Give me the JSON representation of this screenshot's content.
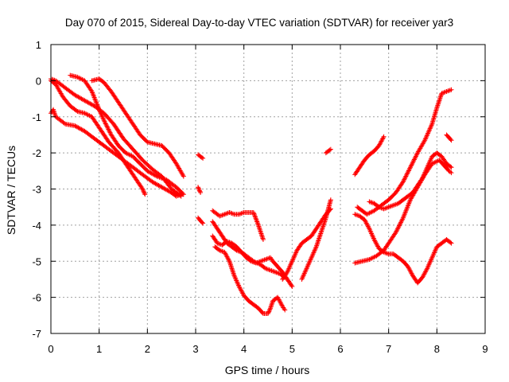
{
  "chart_data": {
    "type": "scatter",
    "title": "Day 070 of 2015, Sidereal Day-to-day VTEC variation (SDTVAR) for receiver yar3",
    "xlabel": "GPS time / hours",
    "ylabel": "SDTVAR / TECUs",
    "xlim": [
      0,
      9
    ],
    "ylim": [
      -7,
      1
    ],
    "xticks": [
      "0",
      "1",
      "2",
      "3",
      "4",
      "5",
      "6",
      "7",
      "8",
      "9"
    ],
    "yticks": [
      "1",
      "0",
      "-1",
      "-2",
      "-3",
      "-4",
      "-5",
      "-6",
      "-7"
    ],
    "grid": true,
    "marker": "+",
    "color": "#ff0000",
    "series": [
      {
        "x": [
          0.0,
          0.1,
          0.25,
          0.4,
          0.55,
          0.7,
          0.85,
          1.0,
          1.2,
          1.4,
          1.6,
          1.75,
          1.9,
          1.95
        ],
        "y": [
          0.0,
          -0.1,
          -0.45,
          -0.7,
          -0.85,
          -0.9,
          -1.0,
          -1.3,
          -1.7,
          -2.0,
          -2.4,
          -2.7,
          -3.0,
          -3.15
        ]
      },
      {
        "x": [
          0.0,
          0.05,
          0.1,
          0.3,
          0.5,
          0.7,
          0.9,
          1.1,
          1.3,
          1.5,
          1.7,
          1.9,
          2.1,
          2.3,
          2.5,
          2.6,
          2.7
        ],
        "y": [
          -0.9,
          -0.8,
          -1.0,
          -1.2,
          -1.25,
          -1.4,
          -1.6,
          -1.8,
          -2.0,
          -2.2,
          -2.4,
          -2.6,
          -2.8,
          -2.95,
          -3.1,
          -3.2,
          -3.15
        ]
      },
      {
        "x": [
          0.0,
          0.1,
          0.3,
          0.5,
          0.7,
          0.9,
          1.1,
          1.3,
          1.5,
          1.7,
          1.9,
          2.1,
          2.3,
          2.5,
          2.7
        ],
        "y": [
          0.05,
          0.0,
          -0.2,
          -0.4,
          -0.55,
          -0.7,
          -0.9,
          -1.2,
          -1.6,
          -1.9,
          -2.2,
          -2.45,
          -2.65,
          -3.0,
          -3.2
        ]
      },
      {
        "x": [
          0.4,
          0.55,
          0.7,
          0.85,
          1.0,
          1.1,
          1.25,
          1.4,
          1.55,
          1.7,
          1.85,
          2.0,
          2.2,
          2.4,
          2.6,
          2.75
        ],
        "y": [
          0.15,
          0.1,
          0.0,
          -0.3,
          -0.8,
          -1.1,
          -1.5,
          -1.8,
          -2.0,
          -2.1,
          -2.3,
          -2.5,
          -2.65,
          -2.75,
          -2.95,
          -3.15
        ]
      },
      {
        "x": [
          0.85,
          1.0,
          1.1,
          1.25,
          1.4,
          1.55,
          1.7,
          1.85,
          2.0,
          2.15,
          2.3,
          2.45,
          2.6,
          2.75
        ],
        "y": [
          0.0,
          0.05,
          -0.05,
          -0.3,
          -0.6,
          -0.9,
          -1.2,
          -1.5,
          -1.7,
          -1.75,
          -1.8,
          -2.0,
          -2.3,
          -2.65
        ]
      },
      {
        "x": [
          3.05,
          3.15
        ],
        "y": [
          -2.05,
          -2.15
        ]
      },
      {
        "x": [
          3.05,
          3.1
        ],
        "y": [
          -2.95,
          -3.1
        ]
      },
      {
        "x": [
          3.05,
          3.15
        ],
        "y": [
          -3.8,
          -3.95
        ]
      },
      {
        "x": [
          3.35,
          3.5,
          3.6,
          3.7,
          3.8,
          3.9,
          4.0,
          4.1,
          4.2,
          4.3,
          4.4
        ],
        "y": [
          -3.6,
          -3.75,
          -3.7,
          -3.65,
          -3.7,
          -3.7,
          -3.65,
          -3.65,
          -3.65,
          -4.0,
          -4.4
        ]
      },
      {
        "x": [
          3.35,
          3.45,
          3.55,
          3.65,
          3.75,
          3.85,
          3.95,
          4.05,
          4.2,
          4.35,
          4.45,
          4.55,
          4.65,
          4.75,
          4.85
        ],
        "y": [
          -3.9,
          -4.1,
          -4.3,
          -4.5,
          -4.6,
          -4.7,
          -4.75,
          -4.85,
          -5.0,
          -5.1,
          -5.2,
          -5.25,
          -5.3,
          -5.35,
          -5.45
        ]
      },
      {
        "x": [
          3.35,
          3.45,
          3.55,
          3.65,
          3.75,
          3.85,
          3.95,
          4.05,
          4.15,
          4.25,
          4.35,
          4.45,
          4.55,
          4.6,
          4.7,
          4.8,
          4.9,
          5.0
        ],
        "y": [
          -4.3,
          -4.5,
          -4.55,
          -4.45,
          -4.5,
          -4.6,
          -4.75,
          -4.9,
          -5.0,
          -5.05,
          -5.0,
          -4.95,
          -4.9,
          -5.0,
          -5.15,
          -5.3,
          -5.5,
          -5.7
        ]
      },
      {
        "x": [
          3.4,
          3.5,
          3.6,
          3.7,
          3.8,
          3.9,
          4.0,
          4.1,
          4.2,
          4.3,
          4.4,
          4.5,
          4.55,
          4.6,
          4.7,
          4.8,
          4.85
        ],
        "y": [
          -4.6,
          -4.7,
          -4.75,
          -5.0,
          -5.4,
          -5.7,
          -5.95,
          -6.1,
          -6.2,
          -6.3,
          -6.45,
          -6.45,
          -6.3,
          -6.1,
          -6.0,
          -6.25,
          -6.35
        ]
      },
      {
        "x": [
          4.8,
          4.9,
          5.0,
          5.1,
          5.2,
          5.3,
          5.4,
          5.5,
          5.6,
          5.7,
          5.8
        ],
        "y": [
          -5.5,
          -5.3,
          -5.0,
          -4.7,
          -4.5,
          -4.4,
          -4.3,
          -4.1,
          -3.9,
          -3.7,
          -3.55
        ]
      },
      {
        "x": [
          5.2,
          5.3,
          5.4,
          5.5,
          5.6,
          5.7,
          5.8
        ],
        "y": [
          -5.5,
          -5.2,
          -4.9,
          -4.6,
          -4.2,
          -3.8,
          -3.3
        ]
      },
      {
        "x": [
          5.7,
          5.8
        ],
        "y": [
          -2.0,
          -1.9
        ]
      },
      {
        "x": [
          6.3,
          6.4,
          6.5,
          6.6,
          6.7,
          6.8,
          6.9
        ],
        "y": [
          -2.6,
          -2.4,
          -2.2,
          -2.05,
          -1.95,
          -1.8,
          -1.55
        ]
      },
      {
        "x": [
          6.3,
          6.4,
          6.5,
          6.6,
          6.7,
          6.8,
          6.9,
          7.0,
          7.1,
          7.2,
          7.3,
          7.4,
          7.5,
          7.6,
          7.7,
          7.8,
          7.9,
          8.0,
          8.1,
          8.2,
          8.3
        ],
        "y": [
          -3.7,
          -3.75,
          -3.85,
          -4.1,
          -4.4,
          -4.65,
          -4.75,
          -4.8,
          -4.8,
          -4.9,
          -5.0,
          -5.15,
          -5.4,
          -5.6,
          -5.45,
          -5.2,
          -4.9,
          -4.6,
          -4.5,
          -4.4,
          -4.5
        ]
      },
      {
        "x": [
          6.3,
          6.45,
          6.6,
          6.75,
          6.9,
          7.0,
          7.15,
          7.3,
          7.45,
          7.6,
          7.75,
          7.9,
          8.05,
          8.15,
          8.25,
          8.3
        ],
        "y": [
          -5.05,
          -5.0,
          -4.95,
          -4.85,
          -4.7,
          -4.5,
          -4.2,
          -3.8,
          -3.3,
          -2.95,
          -2.6,
          -2.3,
          -2.2,
          -2.35,
          -2.5,
          -2.55
        ]
      },
      {
        "x": [
          6.35,
          6.45,
          6.55,
          6.7,
          6.85,
          7.0,
          7.15,
          7.3,
          7.45,
          7.6,
          7.75,
          7.9,
          8.0,
          8.1,
          8.2,
          8.3
        ],
        "y": [
          -3.5,
          -3.6,
          -3.7,
          -3.6,
          -3.45,
          -3.3,
          -3.1,
          -2.8,
          -2.4,
          -2.0,
          -1.65,
          -1.2,
          -0.75,
          -0.35,
          -0.3,
          -0.25
        ]
      },
      {
        "x": [
          6.6,
          6.7,
          6.8,
          6.9,
          7.0,
          7.1,
          7.2,
          7.3,
          7.4,
          7.5,
          7.6,
          7.7,
          7.8,
          7.9,
          8.0,
          8.1,
          8.2,
          8.3
        ],
        "y": [
          -3.35,
          -3.4,
          -3.5,
          -3.55,
          -3.5,
          -3.45,
          -3.4,
          -3.3,
          -3.2,
          -3.1,
          -2.9,
          -2.7,
          -2.4,
          -2.1,
          -2.0,
          -2.1,
          -2.3,
          -2.4
        ]
      },
      {
        "x": [
          8.2,
          8.3
        ],
        "y": [
          -1.5,
          -1.65
        ]
      }
    ]
  }
}
